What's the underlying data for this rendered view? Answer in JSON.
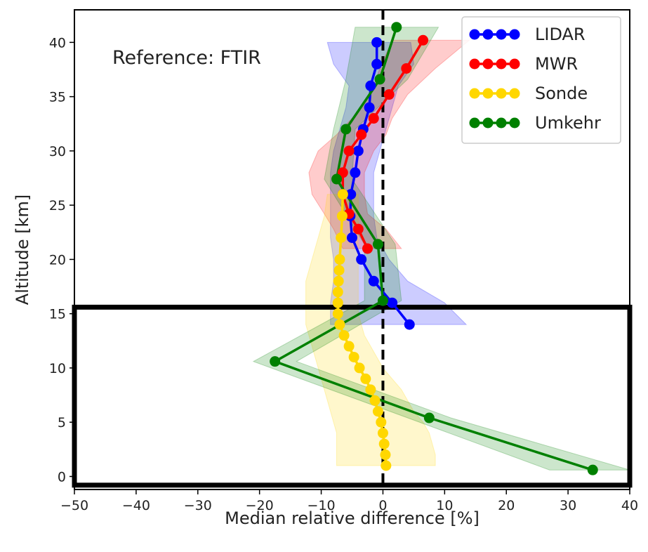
{
  "chart_data": {
    "type": "line",
    "annotation": "Reference: FTIR",
    "xlabel": "Median relative difference [%]",
    "ylabel": "Altitude [km]",
    "xlim": [
      -50,
      40
    ],
    "ylim": [
      -1.2,
      43
    ],
    "xticks": [
      -50,
      -40,
      -30,
      -20,
      -10,
      0,
      10,
      20,
      30,
      40
    ],
    "yticks": [
      0,
      5,
      10,
      15,
      20,
      25,
      30,
      35,
      40
    ],
    "xtick_labels": [
      "−50",
      "−40",
      "−30",
      "−20",
      "−10",
      "0",
      "10",
      "20",
      "30",
      "40"
    ],
    "ytick_labels": [
      "0",
      "5",
      "10",
      "15",
      "20",
      "25",
      "30",
      "35",
      "40"
    ],
    "grid": false,
    "legend_position": "top-right",
    "reference_line": {
      "x": 0,
      "style": "dashed",
      "color": "#000000"
    },
    "highlight_box": {
      "x": [
        -50,
        40
      ],
      "y": [
        -0.8,
        15.6
      ]
    },
    "series": [
      {
        "name": "LIDAR",
        "color": "#0000ff",
        "x": [
          4.3,
          1.5,
          -1.5,
          -3.5,
          -5.0,
          -5.3,
          -5.2,
          -4.5,
          -4.0,
          -3.2,
          -2.2,
          -2.0,
          -1.0,
          -1.0
        ],
        "y": [
          14,
          16,
          18,
          20,
          22,
          24,
          26,
          28,
          30,
          32,
          34,
          36,
          38,
          40
        ],
        "band_low": [
          -8.5,
          -8.5,
          -8.0,
          -8.0,
          -8.5,
          -8.5,
          -8.5,
          -8.5,
          -8.0,
          -7.0,
          -6.0,
          -5.5,
          -8.0,
          -9.0
        ],
        "band_high": [
          13.5,
          10.0,
          4.0,
          1.0,
          -1.0,
          -1.5,
          -1.5,
          -1.5,
          -0.5,
          0.5,
          1.5,
          2.5,
          5.0,
          4.5
        ]
      },
      {
        "name": "MWR",
        "color": "#ff0000",
        "x": [
          -2.5,
          -4.0,
          -5.5,
          -6.5,
          -6.5,
          -5.5,
          -3.5,
          -1.5,
          1.0,
          3.8,
          6.5
        ],
        "y": [
          21,
          22.8,
          24.2,
          26,
          28,
          30,
          31.5,
          33,
          35.2,
          37.6,
          40.2
        ],
        "band_low": [
          -6.5,
          -8.0,
          -9.5,
          -11.5,
          -12.0,
          -10.5,
          -7.5,
          -5.0,
          -2.0,
          -0.5,
          1.5
        ],
        "band_high": [
          3.0,
          0.5,
          -2.5,
          -3.0,
          -3.0,
          -1.5,
          0.5,
          1.5,
          4.0,
          8.5,
          14.0
        ]
      },
      {
        "name": "Sonde",
        "color": "#ffd700",
        "x": [
          0.5,
          0.4,
          0.2,
          0.0,
          -0.3,
          -0.8,
          -1.3,
          -2.0,
          -2.8,
          -3.8,
          -4.7,
          -5.5,
          -6.3,
          -7.0,
          -7.3,
          -7.3,
          -7.3,
          -7.2,
          -7.1,
          -7.0,
          -6.8,
          -6.6,
          -6.5
        ],
        "y": [
          1,
          2,
          3,
          4,
          5,
          6,
          7,
          8,
          9,
          10,
          11,
          12,
          13,
          14,
          15,
          16,
          17,
          18,
          19,
          20,
          22,
          24,
          26
        ],
        "band_low": [
          -7.5,
          -7.5,
          -7.5,
          -7.5,
          -8.0,
          -8.5,
          -9.0,
          -9.5,
          -10.0,
          -10.5,
          -11.0,
          -11.5,
          -12.0,
          -12.5,
          -12.5,
          -12.5,
          -12.5,
          -12.5,
          -12.0,
          -11.5,
          -10.5,
          -9.5,
          -9.0
        ],
        "band_high": [
          8.5,
          8.5,
          8.0,
          7.5,
          6.5,
          5.0,
          4.0,
          3.0,
          1.5,
          0.0,
          -1.0,
          -2.0,
          -3.0,
          -3.5,
          -4.0,
          -4.0,
          -4.0,
          -4.0,
          -4.0,
          -4.0,
          -4.0,
          -4.0,
          -4.0
        ]
      },
      {
        "name": "Umkehr",
        "color": "#008000",
        "x": [
          34.0,
          7.5,
          -17.5,
          0.0,
          -0.8,
          -7.5,
          -6.0,
          -0.5,
          2.2
        ],
        "y": [
          0.6,
          5.4,
          10.6,
          16.2,
          21.4,
          27.4,
          32.0,
          36.6,
          41.4
        ],
        "band_low": [
          27.0,
          4.0,
          -21.0,
          -3.0,
          -3.0,
          -9.5,
          -8.0,
          -6.0,
          -4.5
        ],
        "band_high": [
          40.0,
          11.0,
          -14.0,
          3.0,
          2.0,
          -5.0,
          -4.5,
          4.0,
          9.0
        ]
      }
    ]
  }
}
